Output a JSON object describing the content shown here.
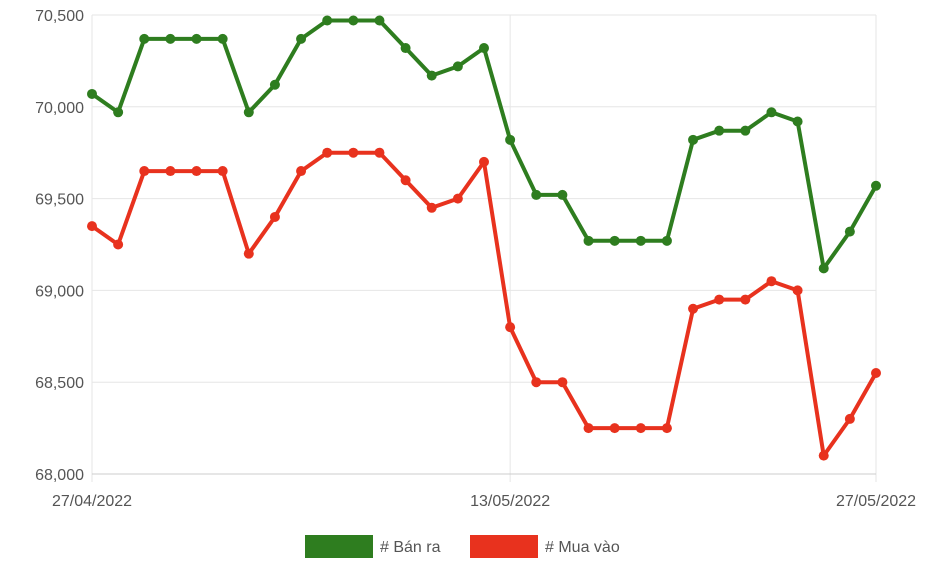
{
  "chart_data": {
    "type": "line",
    "title": "",
    "xlabel": "",
    "ylabel": "",
    "ylim": [
      68000,
      70500
    ],
    "y_ticks": [
      68000,
      68500,
      69000,
      69500,
      70000,
      70500
    ],
    "y_tick_labels": [
      "68,000",
      "68,500",
      "69,000",
      "69,500",
      "70,000",
      "70,500"
    ],
    "x_ticks": [
      {
        "index": 0,
        "label": "27/04/2022"
      },
      {
        "index": 16,
        "label": "13/05/2022"
      },
      {
        "index": 30,
        "label": "27/05/2022"
      }
    ],
    "grid": true,
    "legend_position": "bottom",
    "series": [
      {
        "name": "# Bán ra",
        "color": "#2e7d1f",
        "values": [
          70070,
          69970,
          70370,
          70370,
          70370,
          70370,
          69970,
          70120,
          70370,
          70470,
          70470,
          70470,
          70320,
          70170,
          70220,
          70320,
          69820,
          69520,
          69520,
          69270,
          69270,
          69270,
          69270,
          69820,
          69870,
          69870,
          69970,
          69920,
          69120,
          69320,
          69570
        ]
      },
      {
        "name": "# Mua vào",
        "color": "#e8321e",
        "values": [
          69350,
          69250,
          69650,
          69650,
          69650,
          69650,
          69200,
          69400,
          69650,
          69750,
          69750,
          69750,
          69600,
          69450,
          69500,
          69700,
          68800,
          68500,
          68500,
          68250,
          68250,
          68250,
          68250,
          68900,
          68950,
          68950,
          69050,
          69000,
          68100,
          68300,
          68550
        ]
      }
    ]
  }
}
